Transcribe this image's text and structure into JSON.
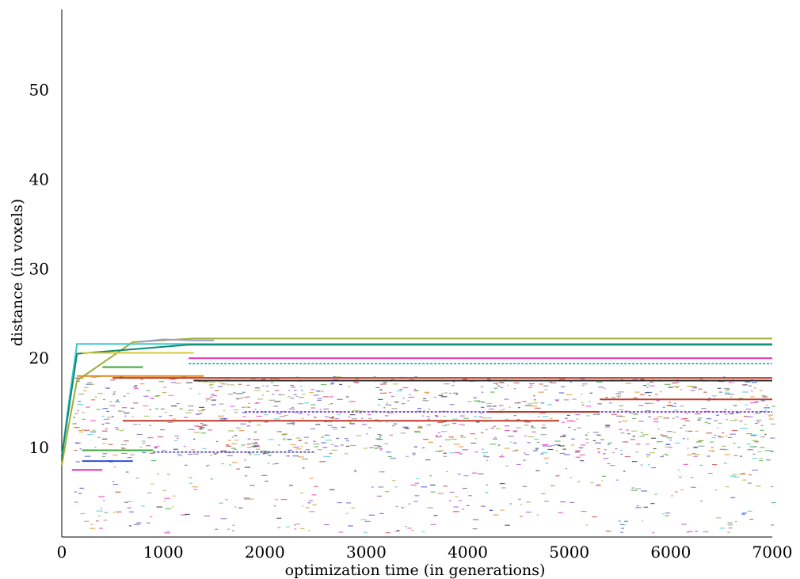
{
  "chart_data": {
    "type": "line",
    "xlabel": "optimization time (in generations)",
    "ylabel": "distance (in voxels)",
    "xlim": [
      0,
      7000
    ],
    "ylim": [
      0,
      59
    ],
    "xticks": [
      0,
      1000,
      2000,
      3000,
      4000,
      5000,
      6000,
      7000
    ],
    "yticks": [
      10,
      20,
      30,
      40,
      50
    ],
    "grid": false,
    "legend": "none",
    "series": [
      {
        "color": "#9ab03c",
        "style": "solid",
        "points": [
          [
            0,
            8
          ],
          [
            60,
            12
          ],
          [
            150,
            17.5
          ],
          [
            700,
            21.8
          ],
          [
            1300,
            22.2
          ],
          [
            7000,
            22.2
          ]
        ]
      },
      {
        "color": "#3fc7cf",
        "style": "solid",
        "points": [
          [
            0,
            9
          ],
          [
            80,
            16
          ],
          [
            150,
            21.6
          ],
          [
            7000,
            21.6
          ]
        ]
      },
      {
        "color": "#0f8a6e",
        "style": "solid",
        "points": [
          [
            0,
            9
          ],
          [
            150,
            20.5
          ],
          [
            1250,
            21.5
          ],
          [
            7000,
            21.5
          ]
        ]
      },
      {
        "color": "#9aa0c8",
        "style": "solid",
        "points": [
          [
            750,
            21.8
          ],
          [
            1000,
            22.1
          ],
          [
            1300,
            22.0
          ],
          [
            1500,
            22.0
          ]
        ]
      },
      {
        "color": "#d5c83a",
        "style": "solid",
        "points": [
          [
            200,
            20.6
          ],
          [
            1300,
            20.6
          ]
        ]
      },
      {
        "color": "#e52fb5",
        "style": "solid",
        "points": [
          [
            1250,
            20.0
          ],
          [
            7000,
            20.0
          ]
        ]
      },
      {
        "color": "#38b8c0",
        "style": "dashed",
        "points": [
          [
            1250,
            19.4
          ],
          [
            7000,
            19.4
          ]
        ]
      },
      {
        "color": "#c0392b",
        "style": "solid",
        "points": [
          [
            500,
            17.8
          ],
          [
            7000,
            17.8
          ]
        ]
      },
      {
        "color": "#2b2b2b",
        "style": "solid",
        "points": [
          [
            1300,
            17.5
          ],
          [
            7000,
            17.5
          ]
        ]
      },
      {
        "color": "#e0881a",
        "style": "solid",
        "points": [
          [
            150,
            18.0
          ],
          [
            1400,
            18.0
          ]
        ]
      },
      {
        "color": "#8a4fd6",
        "style": "dashed",
        "points": [
          [
            1800,
            14.0
          ],
          [
            7000,
            14.0
          ]
        ]
      },
      {
        "color": "#c0392b",
        "style": "solid",
        "points": [
          [
            5300,
            15.4
          ],
          [
            7000,
            15.4
          ]
        ]
      },
      {
        "color": "#c0392b",
        "style": "solid",
        "points": [
          [
            4200,
            14.0
          ],
          [
            5300,
            14.0
          ]
        ]
      },
      {
        "color": "#c0392b",
        "style": "solid",
        "points": [
          [
            600,
            13.0
          ],
          [
            4900,
            13.0
          ]
        ]
      },
      {
        "color": "#6b5cae",
        "style": "dashed",
        "points": [
          [
            900,
            9.5
          ],
          [
            2500,
            9.5
          ]
        ]
      },
      {
        "color": "#3aaa35",
        "style": "solid",
        "points": [
          [
            200,
            9.7
          ],
          [
            900,
            9.7
          ]
        ]
      },
      {
        "color": "#3050d0",
        "style": "solid",
        "points": [
          [
            200,
            8.5
          ],
          [
            700,
            8.5
          ]
        ]
      },
      {
        "color": "#e52fb5",
        "style": "solid",
        "points": [
          [
            100,
            7.5
          ],
          [
            400,
            7.5
          ]
        ]
      },
      {
        "color": "#3aaa35",
        "style": "solid",
        "points": [
          [
            400,
            19.0
          ],
          [
            800,
            19.0
          ]
        ]
      }
    ]
  }
}
